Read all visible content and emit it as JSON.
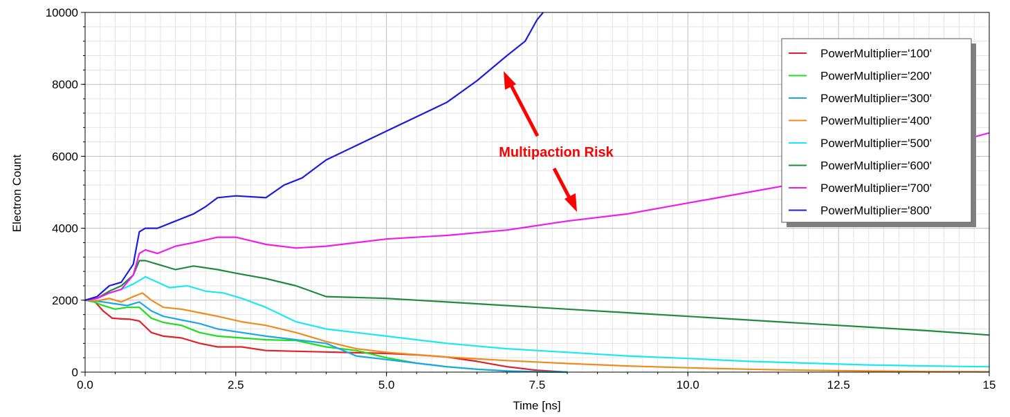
{
  "chart_data": {
    "type": "line",
    "xlabel": "Time [ns]",
    "ylabel": "Electron Count",
    "xlim": [
      0,
      15
    ],
    "ylim": [
      0,
      10000
    ],
    "x_ticks": [
      "0.0",
      "2.5",
      "5.0",
      "7.5",
      "10.0",
      "12.5",
      "15"
    ],
    "y_ticks": [
      "0",
      "2000",
      "4000",
      "6000",
      "8000",
      "10000"
    ],
    "grid": true,
    "legend_position": "top-right",
    "annotation": "Multipaction Risk",
    "series": [
      {
        "name": "PowerMultiplier='100'",
        "color": "#e0202a",
        "x": [
          0,
          0.15,
          0.3,
          0.45,
          0.6,
          0.75,
          0.9,
          1.1,
          1.3,
          1.6,
          1.9,
          2.2,
          2.6,
          3.0,
          3.5,
          4.0,
          4.5,
          5.0,
          5.5,
          6.0,
          6.5,
          7.0,
          7.5,
          8.0
        ],
        "y": [
          2000,
          1980,
          1700,
          1500,
          1480,
          1470,
          1420,
          1100,
          1000,
          950,
          800,
          700,
          700,
          600,
          580,
          560,
          540,
          520,
          480,
          420,
          300,
          150,
          50,
          0
        ]
      },
      {
        "name": "PowerMultiplier='200'",
        "color": "#1ae01a",
        "x": [
          0,
          0.15,
          0.3,
          0.5,
          0.7,
          0.9,
          1.1,
          1.3,
          1.6,
          1.9,
          2.2,
          2.6,
          3.0,
          3.5,
          4.0,
          4.5,
          5.0,
          5.5,
          6.0,
          6.5,
          7.0,
          7.5,
          8.0
        ],
        "y": [
          2000,
          1950,
          1850,
          1750,
          1800,
          1800,
          1500,
          1380,
          1300,
          1100,
          1000,
          950,
          900,
          880,
          700,
          600,
          400,
          250,
          150,
          80,
          30,
          10,
          0
        ]
      },
      {
        "name": "PowerMultiplier='300'",
        "color": "#1aa6e8",
        "x": [
          0,
          0.15,
          0.3,
          0.5,
          0.7,
          0.9,
          1.1,
          1.3,
          1.6,
          1.9,
          2.2,
          2.6,
          3.0,
          3.5,
          4.0,
          4.5,
          5.0,
          5.5,
          6.0,
          6.5,
          7.0,
          7.5,
          8.0
        ],
        "y": [
          2000,
          1980,
          1950,
          1900,
          1850,
          1950,
          1700,
          1550,
          1450,
          1350,
          1200,
          1100,
          1000,
          900,
          800,
          450,
          350,
          250,
          150,
          80,
          30,
          10,
          0
        ]
      },
      {
        "name": "PowerMultiplier='400'",
        "color": "#f08a1a",
        "x": [
          0,
          0.2,
          0.4,
          0.6,
          0.8,
          0.95,
          1.1,
          1.3,
          1.6,
          1.9,
          2.2,
          2.6,
          3.0,
          3.5,
          4.0,
          4.5,
          5.0,
          6.0,
          7.0,
          8.0,
          9.0,
          10.0,
          11.0,
          12.0,
          13.0,
          14.0,
          15.0
        ],
        "y": [
          2000,
          1980,
          2050,
          1950,
          2100,
          2200,
          2000,
          1800,
          1750,
          1650,
          1550,
          1400,
          1300,
          1100,
          850,
          650,
          550,
          420,
          320,
          240,
          170,
          120,
          80,
          50,
          30,
          15,
          10
        ]
      },
      {
        "name": "PowerMultiplier='500'",
        "color": "#1ae8f0",
        "x": [
          0,
          0.2,
          0.4,
          0.6,
          0.8,
          1.0,
          1.2,
          1.4,
          1.7,
          2.0,
          2.3,
          2.6,
          3.0,
          3.5,
          4.0,
          4.5,
          5.0,
          5.5,
          6.0,
          7.0,
          8.0,
          9.0,
          10.0,
          11.0,
          12.0,
          13.0,
          14.0,
          15.0
        ],
        "y": [
          2000,
          2050,
          2200,
          2300,
          2450,
          2650,
          2500,
          2350,
          2400,
          2250,
          2200,
          2050,
          1800,
          1400,
          1200,
          1100,
          1000,
          900,
          800,
          650,
          550,
          450,
          380,
          300,
          250,
          200,
          170,
          150
        ]
      },
      {
        "name": "PowerMultiplier='600'",
        "color": "#1f8a3a",
        "x": [
          0,
          0.2,
          0.4,
          0.6,
          0.8,
          0.9,
          1.0,
          1.2,
          1.5,
          1.8,
          2.2,
          2.5,
          3.0,
          3.5,
          4.0,
          5.0,
          6.0,
          7.0,
          8.0,
          9.0,
          10.0,
          11.0,
          12.0,
          13.0,
          14.0,
          15.0
        ],
        "y": [
          2000,
          2050,
          2250,
          2400,
          2700,
          3100,
          3100,
          3000,
          2850,
          2950,
          2850,
          2750,
          2600,
          2400,
          2100,
          2050,
          1950,
          1850,
          1750,
          1650,
          1550,
          1450,
          1350,
          1250,
          1150,
          1030
        ]
      },
      {
        "name": "PowerMultiplier='700'",
        "color": "#f01af0",
        "x": [
          0,
          0.2,
          0.4,
          0.6,
          0.8,
          0.9,
          1.0,
          1.2,
          1.5,
          1.8,
          2.2,
          2.5,
          3.0,
          3.5,
          4.0,
          5.0,
          6.0,
          7.0,
          8.0,
          9.0,
          10.0,
          11.0,
          12.0,
          13.0,
          14.0,
          15.0
        ],
        "y": [
          2000,
          2050,
          2200,
          2300,
          2700,
          3300,
          3400,
          3300,
          3500,
          3600,
          3750,
          3750,
          3550,
          3450,
          3500,
          3700,
          3800,
          3950,
          4200,
          4400,
          4700,
          5000,
          5300,
          5700,
          6200,
          6650
        ]
      },
      {
        "name": "PowerMultiplier='800'",
        "color": "#1a1ae0",
        "x": [
          0,
          0.2,
          0.4,
          0.6,
          0.8,
          0.9,
          1.0,
          1.2,
          1.5,
          1.8,
          2.0,
          2.2,
          2.5,
          3.0,
          3.3,
          3.6,
          4.0,
          4.5,
          5.0,
          5.5,
          6.0,
          6.5,
          7.0,
          7.3,
          7.5,
          7.6
        ],
        "y": [
          2000,
          2100,
          2400,
          2500,
          3000,
          3900,
          4000,
          4000,
          4200,
          4400,
          4600,
          4850,
          4900,
          4850,
          5200,
          5400,
          5900,
          6300,
          6700,
          7100,
          7500,
          8100,
          8800,
          9200,
          9800,
          10000
        ]
      }
    ]
  }
}
